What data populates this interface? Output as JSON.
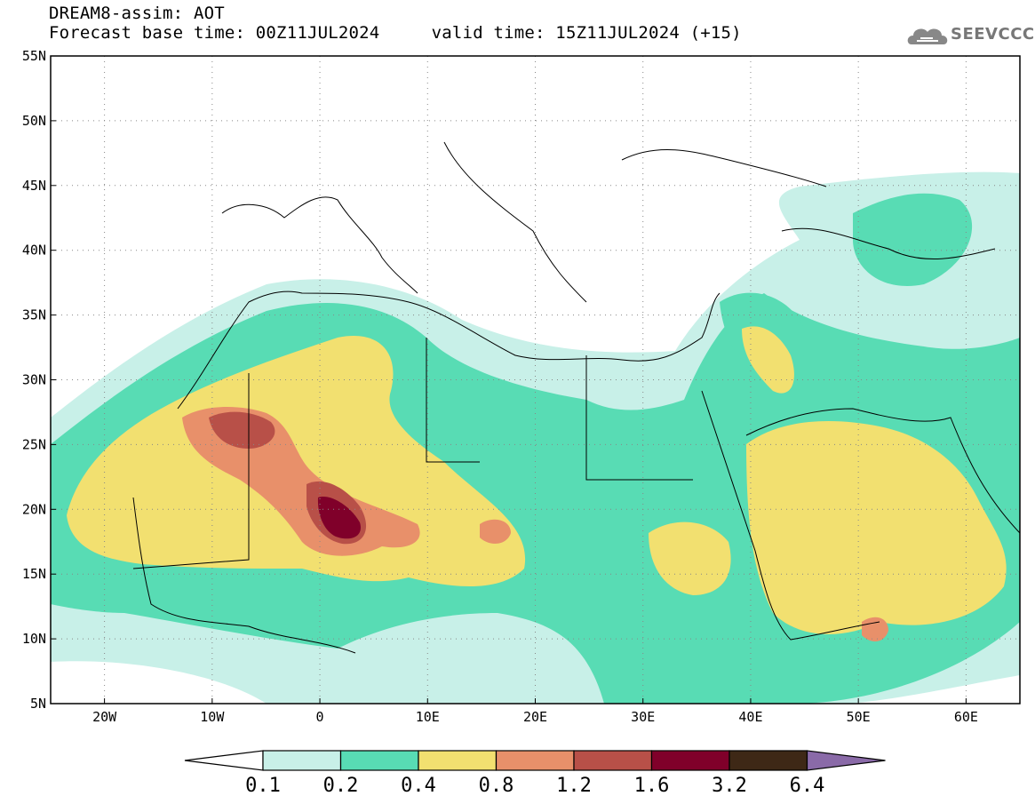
{
  "header": {
    "title": "DREAM8-assim: AOT",
    "subtitle": "Forecast base time: 00Z11JUL2024     valid time: 15Z11JUL2024 (+15)"
  },
  "logo": {
    "text": "SEEVCCC",
    "icon": "cloud-icon"
  },
  "map": {
    "lat_range": [
      5,
      55
    ],
    "lon_range": [
      -25,
      65
    ],
    "lat_ticks": [
      "5N",
      "10N",
      "15N",
      "20N",
      "25N",
      "30N",
      "35N",
      "40N",
      "45N",
      "50N",
      "55N"
    ],
    "lon_ticks": [
      "20W",
      "10W",
      "0",
      "10E",
      "20E",
      "30E",
      "40E",
      "50E",
      "60E"
    ],
    "grid": "dotted"
  },
  "colorbar": {
    "labels": [
      "0.1",
      "0.2",
      "0.4",
      "0.8",
      "1.2",
      "1.6",
      "3.2",
      "6.4"
    ],
    "colors": [
      "#ffffff",
      "#c8f0e8",
      "#58dcb4",
      "#f2e070",
      "#e8906a",
      "#b85048",
      "#80002a",
      "#3e2816",
      "#8a6aa8"
    ]
  }
}
